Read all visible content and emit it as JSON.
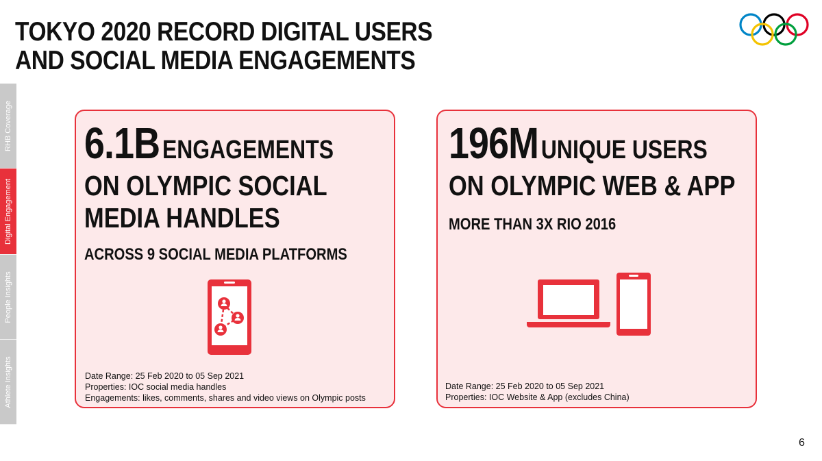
{
  "header": {
    "title_line1": "TOKYO 2020 RECORD DIGITAL USERS",
    "title_line2": "AND SOCIAL MEDIA ENGAGEMENTS"
  },
  "sidenav": {
    "items": [
      {
        "label": "RHB Coverage",
        "active": false
      },
      {
        "label": "Digital Engagement",
        "active": true
      },
      {
        "label": "People Insights",
        "active": false
      },
      {
        "label": "Athlete Insights",
        "active": false
      }
    ]
  },
  "cards": {
    "left": {
      "big_value": "6.1B",
      "unit": "ENGAGEMENTS",
      "headline_line1": "ON OLYMPIC SOCIAL",
      "headline_line2": "MEDIA HANDLES",
      "sub": "ACROSS 9 SOCIAL MEDIA PLATFORMS",
      "icon": "phone-social-network-icon",
      "notes": [
        "Date Range: 25 Feb 2020 to 05 Sep 2021",
        "Properties: IOC social media handles",
        "Engagements: likes, comments, shares and video views on Olympic posts"
      ]
    },
    "right": {
      "big_value": "196M",
      "unit": "UNIQUE USERS",
      "headline_line1": "ON OLYMPIC WEB & APP",
      "sub": "MORE THAN 3X RIO 2016",
      "icons": [
        "laptop-icon",
        "smartphone-icon"
      ],
      "notes": [
        "Date Range: 25 Feb 2020 to 05 Sep  2021",
        "Properties: IOC Website & App (excludes China)"
      ]
    }
  },
  "colors": {
    "accent": "#e8313b",
    "card_bg": "#fde9ea",
    "side_tab_inactive": "#c9c9c9",
    "ring_blue": "#0085c7",
    "ring_yellow": "#f4c300",
    "ring_black": "#000000",
    "ring_green": "#009f3d",
    "ring_red": "#df0024"
  },
  "logo": "olympic-rings-logo",
  "page_number": "6"
}
